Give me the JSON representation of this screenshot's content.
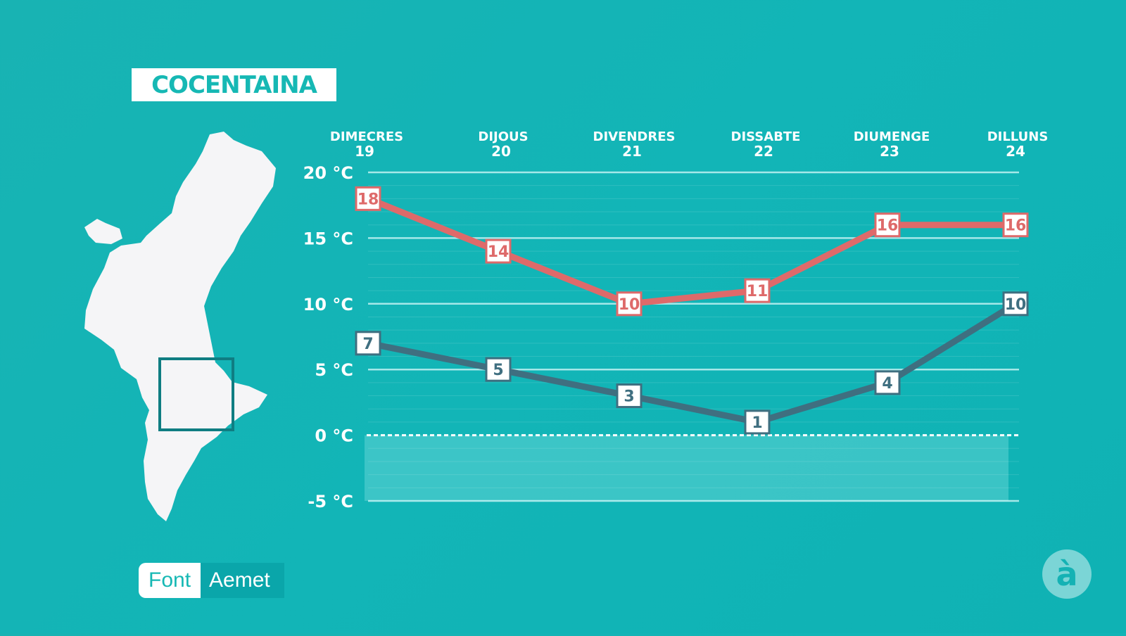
{
  "location": "COCENTAINA",
  "source": {
    "label": "Font",
    "value": "Aemet"
  },
  "logo": "à",
  "colors": {
    "background": "#14b4b5",
    "max_line": "#de6a6a",
    "min_line": "#3f6f80",
    "grid": "#9fe3e3"
  },
  "chart_data": {
    "type": "line",
    "title": "",
    "categories": [
      {
        "day": "DIMECRES",
        "date": "19"
      },
      {
        "day": "DIJOUS",
        "date": "20"
      },
      {
        "day": "DIVENDRES",
        "date": "21"
      },
      {
        "day": "DISSABTE",
        "date": "22"
      },
      {
        "day": "DIUMENGE",
        "date": "23"
      },
      {
        "day": "DILLUNS",
        "date": "24"
      }
    ],
    "series": [
      {
        "values": [
          18,
          14,
          10,
          11,
          16,
          16
        ],
        "color": "#de6a6a"
      },
      {
        "values": [
          7,
          5,
          3,
          1,
          4,
          10
        ],
        "color": "#3f6f80"
      }
    ],
    "yticks": [
      "20 °C",
      "15 °C",
      "10 °C",
      "5 °C",
      "0 °C",
      "-5 °C"
    ],
    "ytick_values": [
      20,
      15,
      10,
      5,
      0,
      -5
    ],
    "ylim": [
      -5,
      20
    ],
    "grid": true,
    "zero_line": "dashed"
  }
}
